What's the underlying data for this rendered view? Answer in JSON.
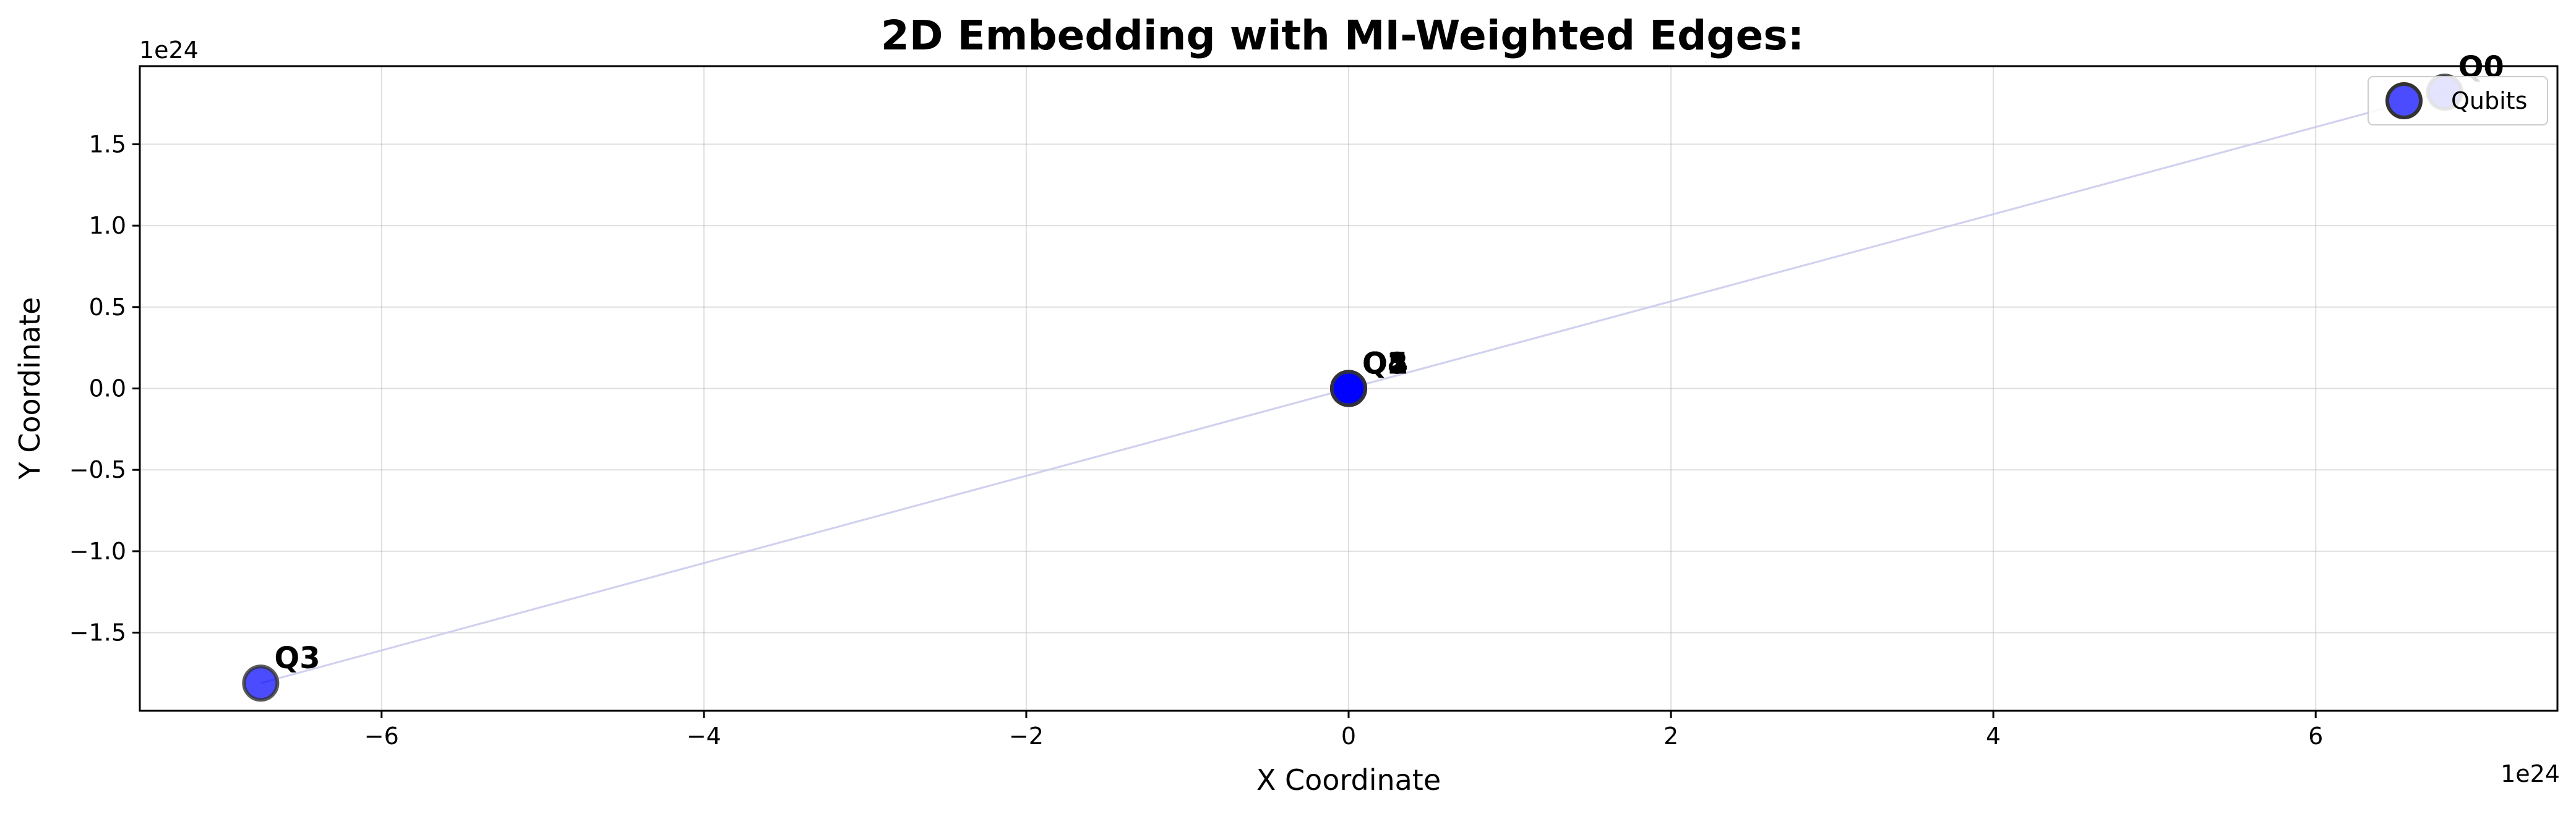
{
  "chart_data": {
    "type": "scatter",
    "title": "2D Embedding with MI-Weighted Edges:",
    "xlabel": "X Coordinate",
    "ylabel": "Y Coordinate",
    "x_offset_label": "1e24",
    "y_offset_label": "1e24",
    "xlim": [
      -7.5,
      7.5
    ],
    "ylim": [
      -1.98,
      1.98
    ],
    "xticks": [
      -6,
      -4,
      -2,
      0,
      2,
      4,
      6
    ],
    "xtick_labels": [
      "−6",
      "−4",
      "−2",
      "0",
      "2",
      "4",
      "6"
    ],
    "yticks": [
      -1.5,
      -1.0,
      -0.5,
      0.0,
      0.5,
      1.0,
      1.5
    ],
    "ytick_labels": [
      "−1.5",
      "−1.0",
      "−0.5",
      "0.0",
      "0.5",
      "1.0",
      "1.5"
    ],
    "grid": true,
    "legend": {
      "position": "top-right",
      "entries": [
        "Qubits"
      ]
    },
    "series": [
      {
        "name": "Qubits",
        "color": "#0000ff",
        "points": [
          {
            "label": "Q0",
            "x": 6.8,
            "y": 1.82
          },
          {
            "label": "Q1",
            "x": 0.0,
            "y": 0.0
          },
          {
            "label": "Q2",
            "x": 0.0,
            "y": 0.0
          },
          {
            "label": "Q3",
            "x": -6.75,
            "y": -1.81
          },
          {
            "label": "Q4",
            "x": 0.0,
            "y": 0.0
          },
          {
            "label": "Q5",
            "x": 0.0,
            "y": 0.0
          }
        ]
      }
    ]
  }
}
